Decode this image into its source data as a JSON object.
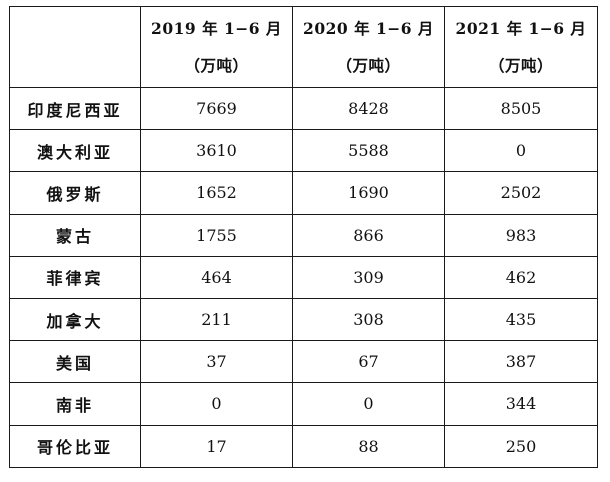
{
  "table": {
    "headers": [
      "",
      {
        "period": "2019 年 1−6 月",
        "unit": "（万吨）"
      },
      {
        "period": "2020 年 1−6 月",
        "unit": "（万吨）"
      },
      {
        "period": "2021 年 1−6 月",
        "unit": "（万吨）"
      }
    ],
    "rows": [
      {
        "country": "印度尼西亚",
        "y2019": "7669",
        "y2020": "8428",
        "y2021": "8505"
      },
      {
        "country": "澳大利亚",
        "y2019": "3610",
        "y2020": "5588",
        "y2021": "0"
      },
      {
        "country": "俄罗斯",
        "y2019": "1652",
        "y2020": "1690",
        "y2021": "2502"
      },
      {
        "country": "蒙古",
        "y2019": "1755",
        "y2020": "866",
        "y2021": "983"
      },
      {
        "country": "菲律宾",
        "y2019": "464",
        "y2020": "309",
        "y2021": "462"
      },
      {
        "country": "加拿大",
        "y2019": "211",
        "y2020": "308",
        "y2021": "435"
      },
      {
        "country": "美国",
        "y2019": "37",
        "y2020": "67",
        "y2021": "387"
      },
      {
        "country": "南非",
        "y2019": "0",
        "y2020": "0",
        "y2021": "344"
      },
      {
        "country": "哥伦比亚",
        "y2019": "17",
        "y2020": "88",
        "y2021": "250"
      }
    ]
  }
}
